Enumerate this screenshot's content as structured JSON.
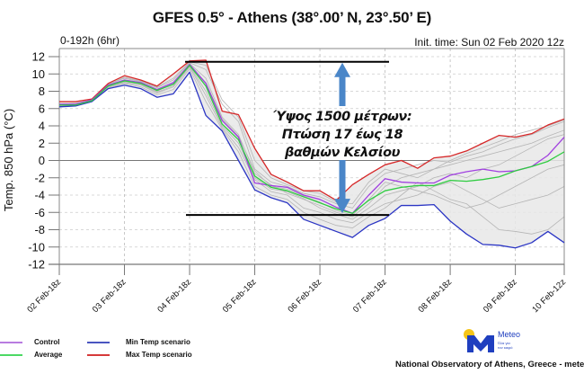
{
  "header": {
    "title": "GFES 0.5° - Athens (38°.00’ N, 23°.50’ E)",
    "range_label": "0-192h (6hr)",
    "init_time": "Init. time: Sun 02 Feb 2020 12z"
  },
  "annotation": {
    "line1": "Ύψος 1500 μέτρων:",
    "line2": "Πτώση 17 έως 18",
    "line3": "βαθμών Κελσίου",
    "upper_level": 11.4,
    "lower_level": -6.3,
    "arrow_color": "#4a86c8"
  },
  "legend": {
    "control": "Control",
    "average": "Average",
    "min": "Min Temp scenario",
    "max": "Max Temp scenario"
  },
  "logo": {
    "name": "Meteo",
    "tagline1": "Όλα για",
    "tagline2": "τον καιρό",
    "sun_color": "#f5c518",
    "brand_color": "#1f3fbf"
  },
  "footer": {
    "credit": "National Observatory of Athens, Greece - meteo.gr"
  },
  "chart_data": {
    "type": "line",
    "title": "GFES 0.5° - Athens (38°.00’ N, 23°.50’ E)",
    "xlabel": "",
    "ylabel": "Temp. 850 hPa (°C)",
    "ylim": [
      -12,
      12
    ],
    "yticks": [
      12,
      10,
      8,
      6,
      4,
      2,
      0,
      -2,
      -4,
      -6,
      -8,
      -10,
      -12
    ],
    "x_hours": [
      0,
      6,
      12,
      18,
      24,
      30,
      36,
      42,
      48,
      54,
      60,
      66,
      72,
      78,
      84,
      90,
      96,
      102,
      108,
      114,
      120,
      126,
      132,
      138,
      144,
      150,
      156,
      162,
      168,
      174,
      180,
      186
    ],
    "xtick_hours": [
      0,
      24,
      48,
      72,
      96,
      120,
      144,
      168,
      186
    ],
    "xtick_labels": [
      "02 Feb-18z",
      "03 Feb-18z",
      "04 Feb-18z",
      "05 Feb-18z",
      "06 Feb-18z",
      "07 Feb-18z",
      "08 Feb-18z",
      "09 Feb-18z",
      "10 Feb-12z"
    ],
    "grid": true,
    "legend_position": "bottom-left",
    "series": [
      {
        "name": "Max Temp scenario",
        "color": "#d62728",
        "values": [
          6.8,
          6.8,
          7.1,
          8.9,
          9.8,
          9.3,
          8.6,
          10.0,
          11.5,
          11.6,
          5.7,
          5.3,
          1.4,
          -1.6,
          -2.5,
          -3.5,
          -3.5,
          -4.6,
          -2.8,
          -1.6,
          -0.5,
          0.0,
          -0.9,
          0.3,
          0.5,
          1.1,
          2.0,
          2.9,
          2.7,
          3.1,
          4.1,
          4.8
        ]
      },
      {
        "name": "Min Temp scenario",
        "color": "#2b35c4",
        "values": [
          6.2,
          6.3,
          6.8,
          8.3,
          8.7,
          8.3,
          7.3,
          7.7,
          10.2,
          5.2,
          3.4,
          0.0,
          -3.4,
          -4.3,
          -4.9,
          -6.8,
          -7.5,
          -8.2,
          -8.9,
          -7.5,
          -6.7,
          -5.2,
          -5.2,
          -5.1,
          -7.0,
          -8.5,
          -9.7,
          -9.8,
          -10.1,
          -9.5,
          -8.2,
          -9.5
        ]
      },
      {
        "name": "Control",
        "color": "#a040e0",
        "values": [
          6.5,
          6.5,
          7.0,
          8.7,
          9.3,
          9.0,
          8.2,
          9.0,
          11.1,
          8.9,
          4.6,
          2.7,
          -2.6,
          -2.9,
          -3.1,
          -4.0,
          -4.5,
          -5.4,
          -6.1,
          -4.0,
          -2.1,
          -2.5,
          -2.6,
          -2.6,
          -1.7,
          -1.3,
          -1.0,
          -1.3,
          -1.2,
          -0.7,
          0.6,
          2.7
        ]
      },
      {
        "name": "Average",
        "color": "#2ecc40",
        "values": [
          6.4,
          6.4,
          6.9,
          8.6,
          9.2,
          8.9,
          8.1,
          8.8,
          11.0,
          8.6,
          4.2,
          2.4,
          -1.8,
          -3.1,
          -3.5,
          -4.2,
          -4.9,
          -5.6,
          -6.1,
          -4.6,
          -3.5,
          -3.1,
          -2.9,
          -2.9,
          -2.3,
          -2.4,
          -2.2,
          -1.9,
          -1.2,
          -0.7,
          -0.1,
          1.0
        ]
      }
    ],
    "ensemble_members": [
      [
        6.5,
        6.6,
        7.0,
        8.8,
        9.5,
        9.1,
        8.4,
        9.3,
        11.3,
        10.5,
        6.5,
        4.5,
        -1.0,
        -2.5,
        -3.0,
        -3.8,
        -4.2,
        -5.0,
        -5.5,
        -3.0,
        -1.5,
        -1.0,
        -0.5,
        0.0,
        -0.2,
        0.5,
        1.0,
        1.8,
        2.5,
        3.0,
        3.8,
        4.5
      ],
      [
        6.3,
        6.4,
        6.8,
        8.5,
        9.0,
        8.7,
        7.8,
        8.5,
        10.8,
        7.5,
        3.8,
        1.5,
        -2.2,
        -3.6,
        -4.0,
        -5.5,
        -6.0,
        -6.8,
        -7.2,
        -6.0,
        -5.0,
        -4.5,
        -4.0,
        -3.0,
        -2.5,
        -3.5,
        -4.5,
        -5.5,
        -5.0,
        -4.5,
        -4.0,
        -3.0
      ],
      [
        6.4,
        6.5,
        6.9,
        8.7,
        9.3,
        9.0,
        8.0,
        8.9,
        11.2,
        9.5,
        5.0,
        3.0,
        -1.5,
        -2.8,
        -3.8,
        -4.5,
        -5.2,
        -6.0,
        -6.5,
        -5.0,
        -3.0,
        -2.0,
        -1.5,
        -1.0,
        -0.5,
        0.0,
        0.5,
        1.0,
        1.5,
        2.0,
        2.8,
        3.5
      ],
      [
        6.2,
        6.3,
        6.8,
        8.4,
        8.9,
        8.5,
        7.6,
        8.2,
        10.6,
        6.8,
        3.6,
        1.0,
        -3.0,
        -4.0,
        -4.5,
        -6.0,
        -6.8,
        -7.5,
        -7.8,
        -6.5,
        -5.5,
        -4.0,
        -2.5,
        -3.5,
        -4.5,
        -5.0,
        -6.5,
        -8.0,
        -8.2,
        -8.5,
        -8.0,
        -6.5
      ],
      [
        6.5,
        6.6,
        7.0,
        8.8,
        9.6,
        9.2,
        8.5,
        9.5,
        11.4,
        11.0,
        7.0,
        5.0,
        0.0,
        -2.0,
        -2.8,
        -3.5,
        -3.8,
        -4.8,
        -5.0,
        -2.5,
        -1.0,
        -1.5,
        -2.0,
        -1.0,
        0.0,
        0.8,
        1.5,
        2.2,
        3.0,
        3.5,
        4.0,
        4.7
      ],
      [
        6.3,
        6.4,
        6.9,
        8.6,
        9.1,
        8.8,
        7.9,
        8.6,
        10.9,
        8.0,
        4.0,
        2.0,
        -2.0,
        -3.3,
        -3.6,
        -4.4,
        -5.5,
        -6.2,
        -6.8,
        -5.5,
        -4.0,
        -3.5,
        -3.0,
        -2.0,
        -1.5,
        -2.0,
        -1.0,
        -0.5,
        0.5,
        1.5,
        2.5,
        3.0
      ],
      [
        6.4,
        6.5,
        7.0,
        8.7,
        9.2,
        8.9,
        8.1,
        8.8,
        11.0,
        9.0,
        4.8,
        2.8,
        -1.2,
        -3.0,
        -3.3,
        -4.1,
        -4.8,
        -5.8,
        -6.3,
        -4.5,
        -2.5,
        -3.0,
        -3.5,
        -4.0,
        -4.8,
        -5.5,
        -5.0,
        -4.0,
        -3.0,
        -2.0,
        -1.0,
        -0.5
      ]
    ]
  }
}
